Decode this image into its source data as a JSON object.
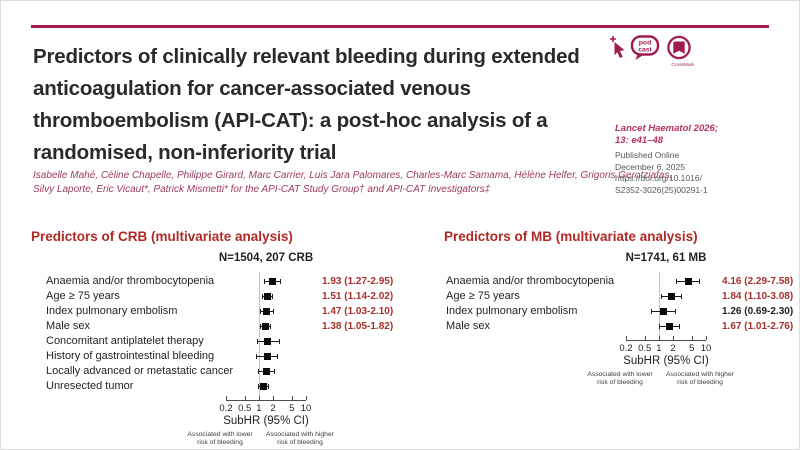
{
  "header": {
    "title": "Predictors of clinically relevant bleeding during extended anticoagulation for cancer-associated venous thromboembolism (API-CAT): a post-hoc analysis of a randomised, non-inferiority trial",
    "title_lines": [
      "Predictors of clinically relevant bleeding during extended",
      "anticoagulation for cancer-associated venous",
      "thromboembolism (API-CAT): a post-hoc analysis of a",
      "randomised, non-inferiority trial"
    ],
    "author_lines": [
      "Isabelle Mahé, Céline Chapelle, Philippe Girard, Marc Carrier, Luis Jara Palomares, Charles-Marc Samama, Hélène Helfer, Grigoris Gerotziafas,",
      "Silvy Laporte, Eric Vicaut*, Patrick Mismetti* for the API-CAT Study Group† and API-CAT Investigators‡"
    ],
    "icons": {
      "podcast_word_top": "pod",
      "podcast_word_bottom": "cast",
      "crossmark_label": "CrossMark"
    }
  },
  "citation": {
    "journal_ref": "Lancet Haematol 2026; 13: e41–48",
    "journal_ref_lines": [
      "Lancet Haematol 2026;",
      "13: e41–48"
    ],
    "published_online_label": "Published Online",
    "published_date": "December 6, 2025",
    "doi_lines": [
      "https://doi.org/10.1016/",
      "S2352-3026(25)00291-1"
    ]
  },
  "chart_data": [
    {
      "type": "scatter",
      "subtype": "forest-plot",
      "title": "Predictors of CRB (multivariate analysis)",
      "subtitle": "N=1504, 207 CRB",
      "xlabel": "SubHR (95% CI)",
      "x_scale": "log",
      "xlim": [
        0.2,
        10
      ],
      "x_ticks": [
        0.2,
        0.5,
        1,
        2,
        5,
        10
      ],
      "reference_line": 1,
      "rows": [
        {
          "label": "Anaemia and/or thrombocytopenia",
          "estimate": 1.93,
          "ci_low": 1.27,
          "ci_high": 2.95,
          "value_label": "1.93 (1.27-2.95)",
          "significant": true
        },
        {
          "label": "Age ≥ 75 years",
          "estimate": 1.51,
          "ci_low": 1.14,
          "ci_high": 2.02,
          "value_label": "1.51 (1.14-2.02)",
          "significant": true
        },
        {
          "label": "Index pulmonary embolism",
          "estimate": 1.47,
          "ci_low": 1.03,
          "ci_high": 2.1,
          "value_label": "1.47 (1.03-2.10)",
          "significant": true
        },
        {
          "label": "Male sex",
          "estimate": 1.38,
          "ci_low": 1.05,
          "ci_high": 1.82,
          "value_label": "1.38 (1.05-1.82)",
          "significant": true
        },
        {
          "label": "Concomitant antiplatelet therapy",
          "estimate": 1.55,
          "ci_low": 0.9,
          "ci_high": 2.75,
          "value_label": "",
          "significant": false
        },
        {
          "label": "History of gastrointestinal bleeding",
          "estimate": 1.5,
          "ci_low": 0.85,
          "ci_high": 2.6,
          "value_label": "",
          "significant": false
        },
        {
          "label": "Locally advanced or metastatic cancer",
          "estimate": 1.45,
          "ci_low": 0.95,
          "ci_high": 2.2,
          "value_label": "",
          "significant": false
        },
        {
          "label": "Unresected tumor",
          "estimate": 1.25,
          "ci_low": 0.95,
          "ci_high": 1.6,
          "value_label": "",
          "significant": false
        }
      ],
      "annotations": {
        "left": "Associated with lower risk of bleeding",
        "right": "Associated with higher risk of bleeding"
      }
    },
    {
      "type": "scatter",
      "subtype": "forest-plot",
      "title": "Predictors of MB (multivariate analysis)",
      "subtitle": "N=1741, 61 MB",
      "xlabel": "SubHR (95% CI)",
      "x_scale": "log",
      "xlim": [
        0.2,
        10
      ],
      "x_ticks": [
        0.2,
        0.5,
        1,
        2,
        5,
        10
      ],
      "reference_line": 1,
      "rows": [
        {
          "label": "Anaemia and/or thrombocytopenia",
          "estimate": 4.16,
          "ci_low": 2.29,
          "ci_high": 7.58,
          "value_label": "4.16 (2.29-7.58)",
          "significant": true
        },
        {
          "label": "Age ≥ 75 years",
          "estimate": 1.84,
          "ci_low": 1.1,
          "ci_high": 3.08,
          "value_label": "1.84 (1.10-3.08)",
          "significant": true
        },
        {
          "label": "Index pulmonary embolism",
          "estimate": 1.26,
          "ci_low": 0.69,
          "ci_high": 2.3,
          "value_label": "1.26 (0.69-2.30)",
          "significant": false
        },
        {
          "label": "Male sex",
          "estimate": 1.67,
          "ci_low": 1.01,
          "ci_high": 2.76,
          "value_label": "1.67 (1.01-2.76)",
          "significant": true
        }
      ],
      "annotations": {
        "left": "Associated with lower risk of bleeding",
        "right": "Associated with higher risk of bleeding"
      }
    }
  ],
  "colors": {
    "brand_maroon": "#A01E4F",
    "heading_red": "#B02A25",
    "value_red": "#A4312B",
    "journal_ref_pink": "#B5325A",
    "text_dark": "#231F20",
    "reference_line_gray": "#C3C3C3"
  }
}
